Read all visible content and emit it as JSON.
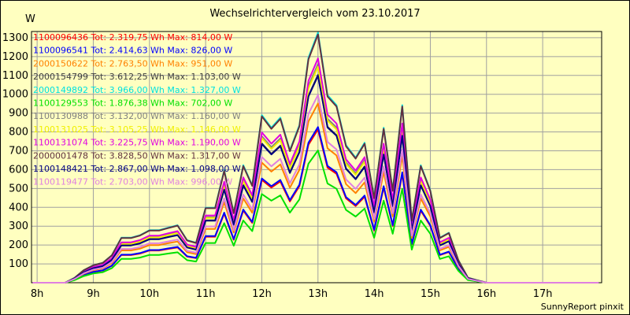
{
  "page": {
    "title": "Wechselrichtervergleich vom 23.10.2017",
    "unit": "W",
    "credit": "SunnyReport pinxit"
  },
  "chart_data": {
    "type": "line",
    "title": "Wechselrichtervergleich vom 23.10.2017",
    "ylabel": "W",
    "xlabel": "",
    "ylim": [
      0,
      1333
    ],
    "xlim": [
      7.9,
      18.05
    ],
    "grid": true,
    "legend_position": "top-left inside",
    "x_ticks": [
      8,
      9,
      10,
      11,
      12,
      13,
      14,
      15,
      16,
      17
    ],
    "x_tick_labels": [
      "8h",
      "9h",
      "10h",
      "11h",
      "12h",
      "13h",
      "14h",
      "15h",
      "16h",
      "17h"
    ],
    "y_ticks": [
      100,
      200,
      300,
      400,
      500,
      600,
      700,
      800,
      900,
      1000,
      1100,
      1200,
      1300
    ],
    "y_tick_labels": [
      "100",
      "200",
      "300",
      "400",
      "500",
      "600",
      "700",
      "800",
      "900",
      "1000",
      "1100",
      "1200",
      "1300"
    ],
    "x": [
      7.92,
      8.5,
      8.67,
      8.83,
      9.0,
      9.17,
      9.33,
      9.5,
      9.67,
      9.83,
      10.0,
      10.17,
      10.33,
      10.5,
      10.67,
      10.83,
      11.0,
      11.17,
      11.33,
      11.5,
      11.67,
      11.83,
      12.0,
      12.17,
      12.33,
      12.5,
      12.67,
      12.83,
      13.0,
      13.17,
      13.33,
      13.5,
      13.67,
      13.83,
      14.0,
      14.17,
      14.33,
      14.5,
      14.67,
      14.83,
      15.0,
      15.17,
      15.33,
      15.5,
      15.67,
      15.83,
      16.0,
      16.17,
      16.33,
      16.5,
      16.67,
      16.83,
      17.0,
      17.17,
      17.33,
      17.5,
      17.67,
      17.83,
      18.0
    ],
    "base_profile": [
      0,
      0,
      0.02,
      0.05,
      0.07,
      0.08,
      0.11,
      0.18,
      0.18,
      0.19,
      0.21,
      0.21,
      0.22,
      0.23,
      0.17,
      0.16,
      0.3,
      0.3,
      0.45,
      0.28,
      0.47,
      0.39,
      0.67,
      0.62,
      0.66,
      0.53,
      0.63,
      0.9,
      1.0,
      0.75,
      0.71,
      0.55,
      0.5,
      0.56,
      0.34,
      0.62,
      0.37,
      0.71,
      0.25,
      0.47,
      0.37,
      0.18,
      0.2,
      0.09,
      0.02,
      0.01,
      0,
      0,
      0,
      0,
      0,
      0,
      0,
      0,
      0,
      0,
      0,
      0,
      0
    ],
    "series": [
      {
        "id": "1100096436",
        "label": "1100096436 Tot: 2.319,75 Wh Max: 814,00 W",
        "color": "#ff0000",
        "max": 814
      },
      {
        "id": "1100096541",
        "label": "1100096541 Tot: 2.414,63 Wh Max: 826,00 W",
        "color": "#0000ff",
        "max": 826
      },
      {
        "id": "2000150622",
        "label": "2000150622 Tot: 2.763,50 Wh Max: 951,00 W",
        "color": "#ff8000",
        "max": 951
      },
      {
        "id": "2000154799",
        "label": "2000154799 Tot: 3.612,25 Wh Max: 1.103,00 W",
        "color": "#404040",
        "max": 1103
      },
      {
        "id": "2000149892",
        "label": "2000149892 Tot: 3.966,00 Wh Max: 1.327,00 W",
        "color": "#00e0e0",
        "max": 1327
      },
      {
        "id": "1100129553",
        "label": "1100129553 Tot: 1.876,38 Wh Max: 702,00 W",
        "color": "#00e000",
        "max": 702
      },
      {
        "id": "1100130988",
        "label": "1100130988 Tot: 3.132,00 Wh Max: 1.160,00 W",
        "color": "#808080",
        "max": 1160
      },
      {
        "id": "1100131025",
        "label": "1100131025 Tot: 3.105,25 Wh Max: 1.146,00 W",
        "color": "#f0f000",
        "max": 1146
      },
      {
        "id": "1100131074",
        "label": "1100131074 Tot: 3.225,75 Wh Max: 1.190,00 W",
        "color": "#e000e0",
        "max": 1190
      },
      {
        "id": "2000001478",
        "label": "2000001478 Tot: 3.828,50 Wh Max: 1.317,00 W",
        "color": "#603040",
        "max": 1317
      },
      {
        "id": "1100148421",
        "label": "1100148421 Tot: 2.867,00 Wh Max: 1.098,00 W",
        "color": "#000080",
        "max": 1098
      },
      {
        "id": "1100119477",
        "label": "1100119477 Tot: 2.703,00 Wh Max: 996,00 W",
        "color": "#e080e0",
        "max": 996
      }
    ],
    "peak_points": [
      {
        "x": 13.67,
        "y": 1327
      },
      {
        "x": 15.33,
        "y": 1020
      }
    ]
  }
}
